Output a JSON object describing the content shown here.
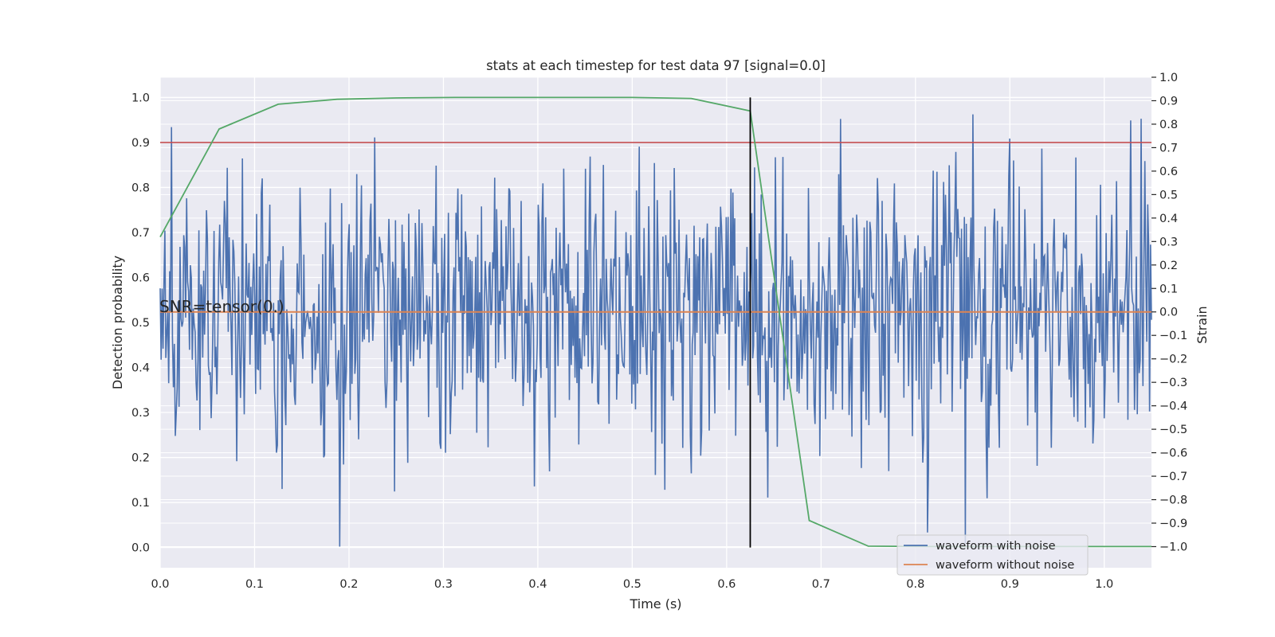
{
  "chart_data": {
    "type": "line",
    "title": "stats at each timestep for test data 97 [signal=0.0]",
    "xlabel": "Time (s)",
    "ylabel_left": "Detection probability",
    "ylabel_right": "Strain",
    "xlim": [
      0.0,
      1.05
    ],
    "ylim_left": [
      -0.045,
      1.045
    ],
    "ylim_right": [
      -1.09,
      1.0
    ],
    "x_ticks": [
      "0.0",
      "0.1",
      "0.2",
      "0.3",
      "0.4",
      "0.5",
      "0.6",
      "0.7",
      "0.8",
      "0.9",
      "1.0"
    ],
    "y_left_ticks": [
      "0.0",
      "0.1",
      "0.2",
      "0.3",
      "0.4",
      "0.5",
      "0.6",
      "0.7",
      "0.8",
      "0.9",
      "1.0"
    ],
    "y_right_ticks": [
      "−1.0",
      "−0.9",
      "−0.8",
      "−0.7",
      "−0.6",
      "−0.5",
      "−0.4",
      "−0.3",
      "−0.2",
      "−0.1",
      "0.0",
      "0.1",
      "0.2",
      "0.3",
      "0.4",
      "0.5",
      "0.6",
      "0.7",
      "0.8",
      "0.9",
      "1.0"
    ],
    "grid": true,
    "legend_position": "lower-right",
    "annotation": "SNR=tensor(0.)",
    "series": [
      {
        "name": "waveform with noise",
        "axis": "right",
        "color": "#4c72b0",
        "noise": {
          "samples": 1050,
          "mean": 0.0,
          "std": 0.3,
          "min": -1.0,
          "max": 0.93
        }
      },
      {
        "name": "waveform without noise",
        "axis": "right",
        "color": "#dd8452",
        "constant": 0.0
      },
      {
        "axis": "left",
        "color": "#55a868",
        "x": [
          0.0,
          0.0625,
          0.125,
          0.1875,
          0.25,
          0.3125,
          0.375,
          0.4375,
          0.5,
          0.5625,
          0.625,
          0.6875,
          0.75,
          0.8125,
          0.875,
          0.9375,
          1.0,
          1.05
        ],
        "y": [
          0.69,
          0.93,
          0.985,
          0.996,
          0.999,
          1.0,
          1.0,
          1.0,
          1.0,
          0.998,
          0.97,
          0.06,
          0.003,
          0.002,
          0.002,
          0.002,
          0.002,
          0.002
        ]
      }
    ],
    "threshold": {
      "axis": "left",
      "value": 0.9,
      "color": "#c44e52"
    },
    "marker_line": {
      "x": 0.625,
      "y_range": [
        0.0,
        1.0
      ],
      "color": "#000000"
    }
  }
}
